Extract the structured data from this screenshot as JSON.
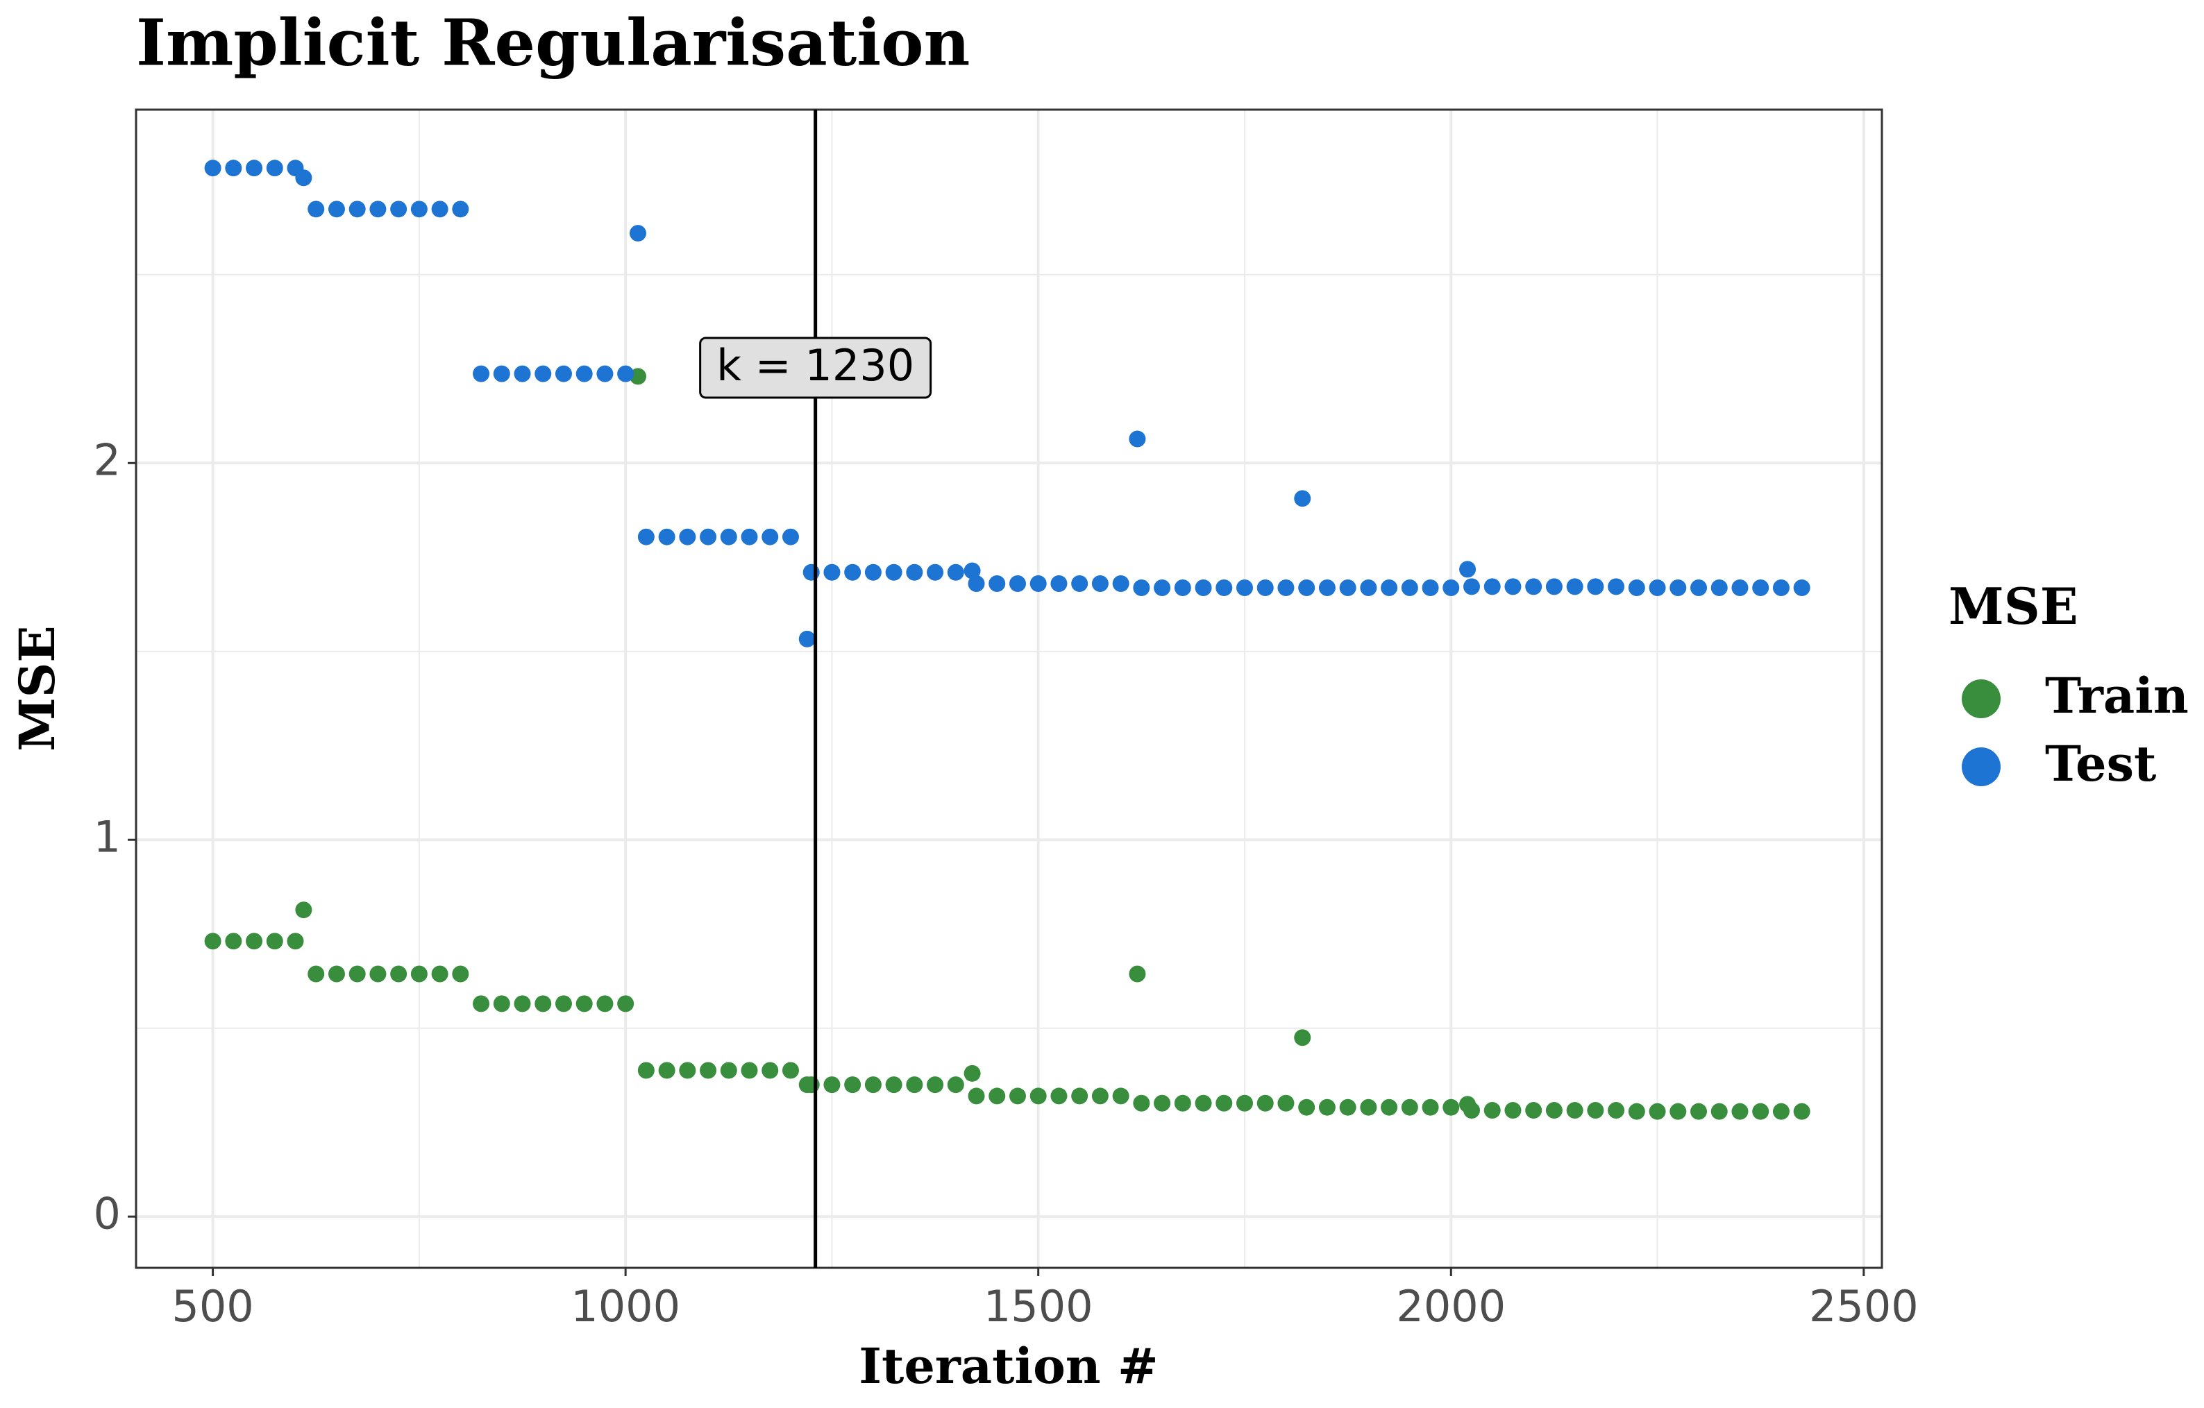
{
  "chart_data": {
    "type": "scatter",
    "title": "Implicit Regularisation",
    "x_label": "Iteration #",
    "y_label": "MSE",
    "legend_title": "MSE",
    "legend_position": "right",
    "x": [
      500,
      525,
      550,
      575,
      600,
      625,
      650,
      675,
      700,
      725,
      750,
      775,
      800,
      825,
      850,
      875,
      900,
      925,
      950,
      975,
      1000,
      1025,
      1050,
      1075,
      1100,
      1125,
      1150,
      1175,
      1200,
      1225,
      1250,
      1275,
      1300,
      1325,
      1350,
      1375,
      1400,
      1425,
      1450,
      1475,
      1500,
      1525,
      1550,
      1575,
      1600,
      1625,
      1650,
      1675,
      1700,
      1725,
      1750,
      1775,
      1800,
      1825,
      1850,
      1875,
      1900,
      1925,
      1950,
      1975,
      2000,
      2025,
      2050,
      2075,
      2100,
      2125,
      2150,
      2175,
      2200,
      2225,
      2250,
      2275,
      2300,
      2325,
      2350,
      2375,
      2400,
      2425,
      610,
      1015,
      1220,
      1420,
      1620,
      1820,
      2020
    ],
    "series": [
      {
        "name": "Train",
        "color": "#388e3c",
        "values": [
          0.731,
          0.731,
          0.731,
          0.731,
          0.731,
          0.644,
          0.644,
          0.644,
          0.644,
          0.644,
          0.644,
          0.644,
          0.644,
          0.565,
          0.565,
          0.565,
          0.565,
          0.565,
          0.565,
          0.565,
          0.565,
          0.388,
          0.388,
          0.388,
          0.388,
          0.388,
          0.388,
          0.388,
          0.388,
          0.35,
          0.35,
          0.35,
          0.35,
          0.35,
          0.35,
          0.35,
          0.35,
          0.32,
          0.32,
          0.32,
          0.32,
          0.32,
          0.32,
          0.32,
          0.32,
          0.301,
          0.301,
          0.301,
          0.301,
          0.301,
          0.301,
          0.301,
          0.301,
          0.29,
          0.29,
          0.29,
          0.29,
          0.29,
          0.29,
          0.29,
          0.29,
          0.282,
          0.282,
          0.282,
          0.282,
          0.282,
          0.282,
          0.282,
          0.282,
          0.279,
          0.279,
          0.279,
          0.279,
          0.279,
          0.279,
          0.279,
          0.279,
          0.279,
          0.814,
          2.23,
          0.35,
          0.38,
          0.644,
          0.475,
          0.298
        ]
      },
      {
        "name": "Test",
        "color": "#1e74d2",
        "values": [
          2.783,
          2.783,
          2.783,
          2.783,
          2.783,
          2.674,
          2.674,
          2.674,
          2.674,
          2.674,
          2.674,
          2.674,
          2.674,
          2.237,
          2.237,
          2.237,
          2.237,
          2.237,
          2.237,
          2.237,
          2.237,
          1.804,
          1.804,
          1.804,
          1.804,
          1.804,
          1.804,
          1.804,
          1.804,
          1.71,
          1.71,
          1.71,
          1.71,
          1.71,
          1.71,
          1.71,
          1.71,
          1.68,
          1.68,
          1.68,
          1.68,
          1.68,
          1.68,
          1.68,
          1.68,
          1.669,
          1.669,
          1.669,
          1.669,
          1.669,
          1.669,
          1.669,
          1.669,
          1.669,
          1.669,
          1.669,
          1.669,
          1.669,
          1.669,
          1.669,
          1.669,
          1.672,
          1.672,
          1.672,
          1.672,
          1.672,
          1.672,
          1.672,
          1.672,
          1.669,
          1.669,
          1.669,
          1.669,
          1.669,
          1.669,
          1.669,
          1.669,
          1.669,
          2.757,
          2.61,
          1.533,
          1.714,
          2.064,
          1.906,
          1.718
        ]
      }
    ],
    "annotation": {
      "x": 1230,
      "label": "k = 1230"
    },
    "xlim": [
      407,
      2522
    ],
    "ylim": [
      -0.136,
      2.938
    ],
    "xticks": [
      500,
      1000,
      1500,
      2000,
      2500
    ],
    "yticks": [
      0,
      1,
      2
    ],
    "xminor": [
      750,
      1250,
      1750,
      2250
    ],
    "yminor": [
      0.5,
      1.5,
      2.5
    ],
    "grid": true
  }
}
